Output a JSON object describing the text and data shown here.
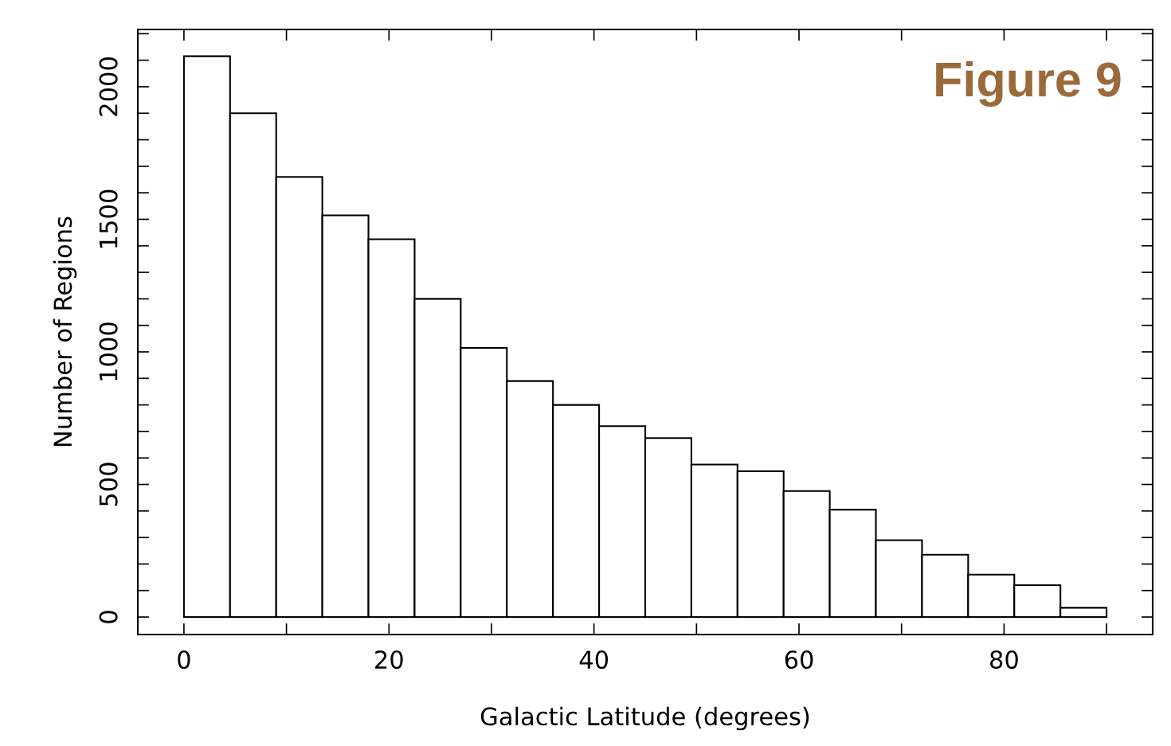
{
  "chart_data": {
    "type": "histogram",
    "xlabel": "Galactic Latitude (degrees)",
    "ylabel": "Number of Regions",
    "annotations": [
      "Figure 9"
    ],
    "bins": [
      0,
      4.5,
      9,
      13.5,
      18,
      22.5,
      27,
      31.5,
      36,
      40.5,
      45,
      49.5,
      54,
      58.5,
      63,
      67.5,
      72,
      76.5,
      81,
      85.5,
      90
    ],
    "values": [
      2115,
      1900,
      1660,
      1515,
      1425,
      1200,
      1015,
      890,
      800,
      720,
      675,
      575,
      550,
      475,
      405,
      290,
      235,
      160,
      120,
      35
    ],
    "color": "#ffffff",
    "xlim": [
      -4.5,
      94.5
    ],
    "ylim": [
      -66,
      2216
    ],
    "xticks": [
      0,
      {
        "value": 10,
        "label": null
      },
      20,
      {
        "value": 30,
        "label": null
      },
      40,
      {
        "value": 50,
        "label": null
      },
      60,
      {
        "value": 70,
        "label": null
      },
      80,
      {
        "value": 90,
        "label": null
      }
    ],
    "yticks": [
      0,
      {
        "value": 100,
        "label": null
      },
      {
        "value": 200,
        "label": null
      },
      {
        "value": 300,
        "label": null
      },
      {
        "value": 400,
        "label": null
      },
      500,
      {
        "value": 600,
        "label": null
      },
      {
        "value": 700,
        "label": null
      },
      {
        "value": 800,
        "label": null
      },
      {
        "value": 900,
        "label": null
      },
      1000,
      {
        "value": 1100,
        "label": null
      },
      {
        "value": 1200,
        "label": null
      },
      {
        "value": 1300,
        "label": null
      },
      {
        "value": 1400,
        "label": null
      },
      1500,
      {
        "value": 1600,
        "label": null
      },
      {
        "value": 1700,
        "label": null
      },
      {
        "value": 1800,
        "label": null
      },
      {
        "value": 1900,
        "label": null
      },
      2000,
      {
        "value": 2100,
        "label": null
      },
      {
        "value": 2200,
        "label": null
      }
    ],
    "grid": false,
    "legend": false
  }
}
